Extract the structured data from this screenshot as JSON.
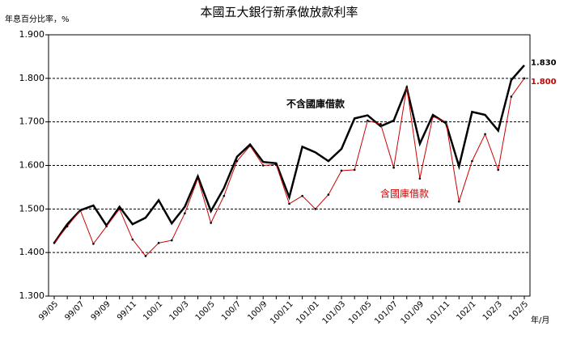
{
  "chart_data": {
    "type": "line",
    "title": "本國五大銀行新承做放款利率",
    "y_label": "年息百分比率，%",
    "x_label": "年/月",
    "categories": [
      "99/05",
      null,
      "99/07",
      null,
      "99/09",
      null,
      "99/11",
      null,
      "100/1",
      null,
      "100/3",
      null,
      "100/5",
      null,
      "100/7",
      null,
      "100/9",
      null,
      "100/11",
      null,
      "101/01",
      null,
      "101/03",
      null,
      "101/05",
      null,
      "101/07",
      null,
      "101/09",
      null,
      "101/11",
      null,
      "102/1",
      null,
      "102/3",
      null,
      "102/5"
    ],
    "series": [
      {
        "name": "不含國庫借款",
        "color": "#000000",
        "values": [
          1.422,
          1.465,
          1.497,
          1.508,
          1.462,
          1.505,
          1.465,
          1.48,
          1.52,
          1.467,
          1.505,
          1.575,
          1.495,
          1.548,
          1.62,
          1.648,
          1.608,
          1.605,
          1.527,
          1.643,
          1.63,
          1.61,
          1.638,
          1.708,
          1.715,
          1.69,
          1.703,
          1.778,
          1.65,
          1.716,
          1.697,
          1.598,
          1.723,
          1.716,
          1.68,
          1.796,
          1.83
        ],
        "value_labels": [
          null,
          null,
          null,
          null,
          null,
          null,
          null,
          null,
          null,
          null,
          null,
          null,
          null,
          null,
          null,
          null,
          null,
          null,
          null,
          null,
          null,
          null,
          null,
          null,
          null,
          null,
          null,
          null,
          null,
          null,
          null,
          null,
          null,
          null,
          null,
          null,
          "1.830"
        ]
      },
      {
        "name": "含國庫借款",
        "color": "#cc0000",
        "values": [
          1.422,
          1.46,
          1.497,
          1.42,
          1.46,
          1.5,
          1.43,
          1.392,
          1.422,
          1.428,
          1.49,
          1.57,
          1.468,
          1.53,
          1.61,
          1.645,
          1.6,
          1.602,
          1.512,
          1.53,
          1.5,
          1.533,
          1.588,
          1.59,
          1.703,
          1.695,
          1.595,
          1.78,
          1.57,
          1.712,
          1.7,
          1.517,
          1.61,
          1.672,
          1.59,
          1.758,
          1.8
        ],
        "value_labels": [
          null,
          null,
          null,
          null,
          null,
          null,
          null,
          null,
          null,
          null,
          null,
          null,
          null,
          null,
          null,
          null,
          null,
          null,
          null,
          null,
          null,
          null,
          null,
          null,
          null,
          null,
          null,
          null,
          null,
          null,
          null,
          null,
          null,
          null,
          null,
          null,
          "1.800"
        ]
      }
    ],
    "ylim": [
      1.3,
      1.9
    ],
    "yticks": [
      {
        "value": 1.3,
        "label": "1.300"
      },
      {
        "value": 1.4,
        "label": "1.400"
      },
      {
        "value": 1.5,
        "label": "1.500"
      },
      {
        "value": 1.6,
        "label": "1.600"
      },
      {
        "value": 1.7,
        "label": "1.700"
      },
      {
        "value": 1.8,
        "label": "1.800"
      },
      {
        "value": 1.9,
        "label": "1.900"
      }
    ],
    "grid": true
  }
}
